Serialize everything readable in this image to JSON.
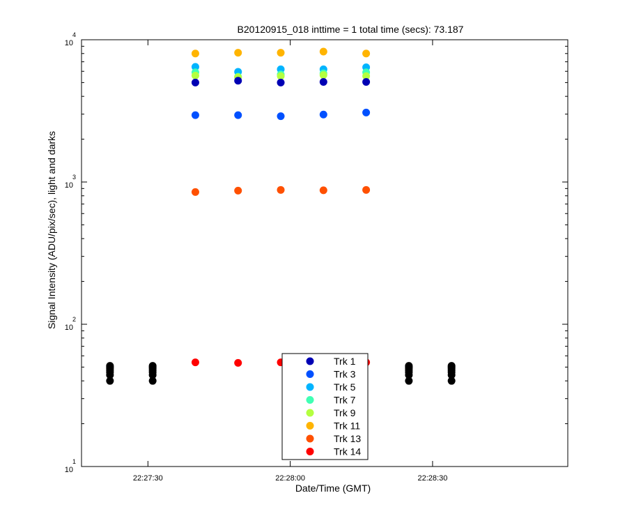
{
  "chart_data": {
    "type": "scatter",
    "title": "B20120915_018 inttime = 1 total time (secs): 73.187",
    "xlabel": "Date/Time (GMT)",
    "ylabel": "Signal Intensity (ADU/pix/sec), light and darks",
    "x_ticks": [
      {
        "t": 30,
        "label": "22:27:30"
      },
      {
        "t": 60,
        "label": "22:28:00"
      },
      {
        "t": 90,
        "label": "22:28:30"
      }
    ],
    "xlim_seconds_after": "22:27:00",
    "xlim": [
      16,
      118.5
    ],
    "y_scale": "log",
    "ylim": [
      10,
      10000
    ],
    "y_ticks": [
      {
        "base": "10",
        "exp": "1",
        "value": 10
      },
      {
        "base": "10",
        "exp": "2",
        "value": 100
      },
      {
        "base": "10",
        "exp": "3",
        "value": 1000
      },
      {
        "base": "10",
        "exp": "4",
        "value": 10000
      }
    ],
    "grid": false,
    "legend_placement": "bottom-center",
    "series": [
      {
        "name": "Trk 1",
        "color": "#0000b4",
        "x": [
          40,
          49,
          58,
          67,
          76
        ],
        "y": [
          5000,
          5150,
          5000,
          5050,
          5050
        ]
      },
      {
        "name": "Trk 3",
        "color": "#0050ff",
        "x": [
          40,
          49,
          58,
          67,
          76
        ],
        "y": [
          2950,
          2950,
          2900,
          2980,
          3080
        ]
      },
      {
        "name": "Trk 5",
        "color": "#00b4ff",
        "x": [
          40,
          49,
          58,
          67,
          76
        ],
        "y": [
          6450,
          5950,
          6200,
          6200,
          6400
        ]
      },
      {
        "name": "Trk 7",
        "color": "#40ffb4",
        "x": [
          40,
          49,
          58,
          67,
          76
        ],
        "y": [
          5900,
          5500,
          5700,
          5800,
          5900
        ]
      },
      {
        "name": "Trk 9",
        "color": "#b4ff40",
        "x": [
          40,
          49,
          58,
          67,
          76
        ],
        "y": [
          5600,
          5450,
          5550,
          5650,
          5550
        ]
      },
      {
        "name": "Trk 11",
        "color": "#ffb400",
        "x": [
          40,
          49,
          58,
          67,
          76
        ],
        "y": [
          8000,
          8100,
          8100,
          8250,
          8000
        ]
      },
      {
        "name": "Trk 13",
        "color": "#ff5000",
        "x": [
          40,
          49,
          58,
          67,
          76
        ],
        "y": [
          850,
          870,
          880,
          875,
          880
        ]
      },
      {
        "name": "Trk 14",
        "color": "#ff0000",
        "x": [
          40,
          49,
          58,
          67,
          76
        ],
        "y": [
          54,
          53.5,
          54,
          53.5,
          54
        ]
      },
      {
        "name": "",
        "color": "#000000",
        "x": [
          22,
          22,
          22,
          22,
          22,
          22,
          22,
          31,
          31,
          31,
          31,
          31,
          31,
          31,
          85,
          85,
          85,
          85,
          85,
          85,
          85,
          94,
          94,
          94,
          94,
          94,
          94,
          94
        ],
        "y": [
          40,
          44,
          46,
          47.5,
          49,
          50,
          51,
          40,
          44,
          46,
          47.5,
          49,
          50,
          51,
          40,
          44,
          46,
          47.5,
          49,
          50,
          51,
          40,
          44,
          46,
          47.5,
          49,
          50,
          51
        ]
      }
    ]
  }
}
